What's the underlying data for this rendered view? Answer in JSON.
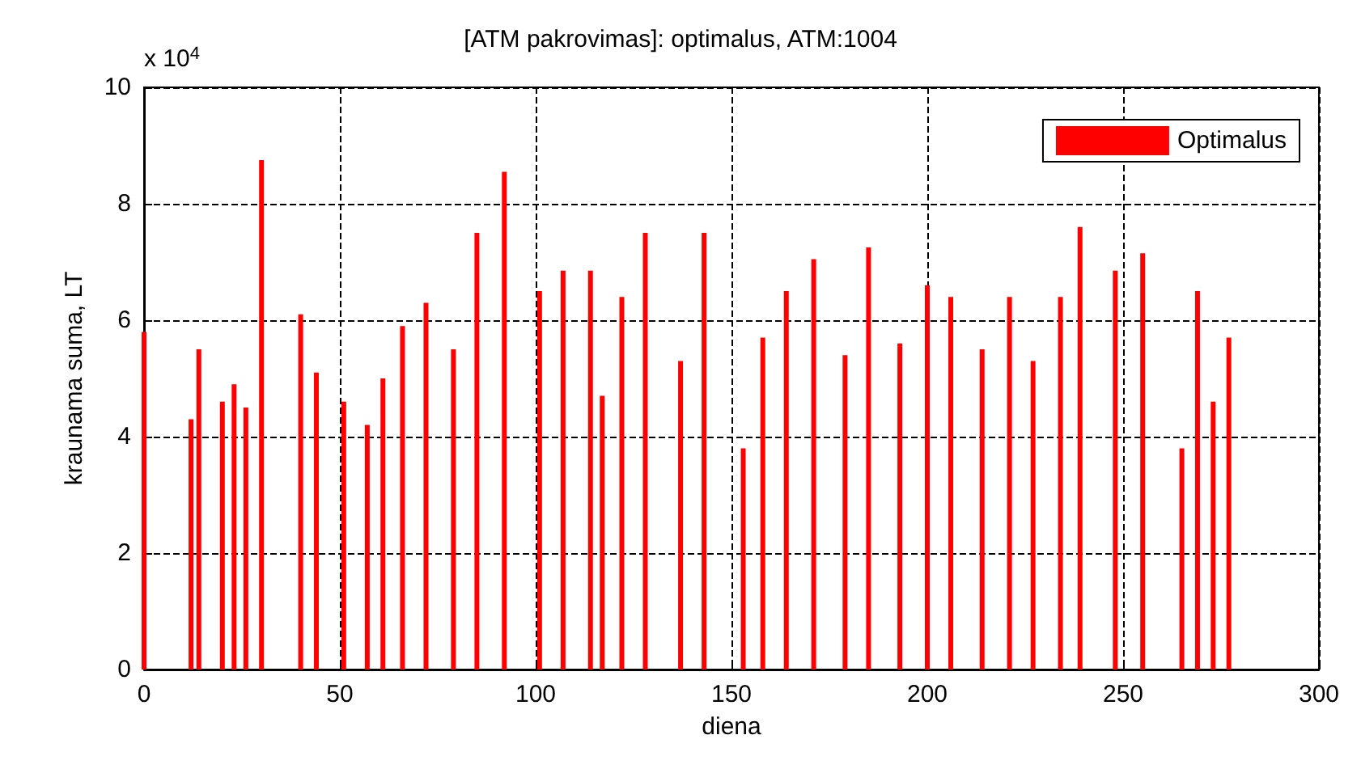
{
  "chart_data": {
    "type": "bar",
    "title": "[ATM pakrovimas]: optimalus, ATM:1004",
    "xlabel": "diena",
    "ylabel": "kraunama suma, LT",
    "annotations": [
      "x 10$^{4}$"
    ],
    "x": [
      0,
      12,
      14,
      20,
      23,
      26,
      30,
      40,
      44,
      51,
      57,
      61,
      66,
      72,
      79,
      85,
      92,
      101,
      107,
      114,
      117,
      122,
      128,
      137,
      143,
      153,
      158,
      164,
      171,
      179,
      185,
      193,
      200,
      206,
      214,
      221,
      227,
      234,
      239,
      248,
      255,
      265,
      269,
      273,
      277
    ],
    "series": [
      {
        "name": "Optimalus",
        "color": "#ff0000",
        "values": [
          5.8,
          4.3,
          5.5,
          4.6,
          4.9,
          4.5,
          8.75,
          6.1,
          5.1,
          4.6,
          4.2,
          5.0,
          5.9,
          6.3,
          5.5,
          7.5,
          8.55,
          6.5,
          6.85,
          6.85,
          4.7,
          6.4,
          7.5,
          5.3,
          7.5,
          3.8,
          5.7,
          6.5,
          7.05,
          5.4,
          7.25,
          5.6,
          6.6,
          6.4,
          5.5,
          6.4,
          5.3,
          6.4,
          7.6,
          6.85,
          7.15,
          3.8,
          6.5,
          4.6,
          5.7
        ]
      }
    ],
    "xlim": [
      0,
      300
    ],
    "xticks": [
      0,
      50,
      100,
      150,
      200,
      250,
      300
    ],
    "ylim": [
      0,
      10
    ],
    "yticks": [
      0,
      2,
      4,
      6,
      8,
      10
    ],
    "grid": true,
    "legend": "top right",
    "line_style": "dashed"
  }
}
